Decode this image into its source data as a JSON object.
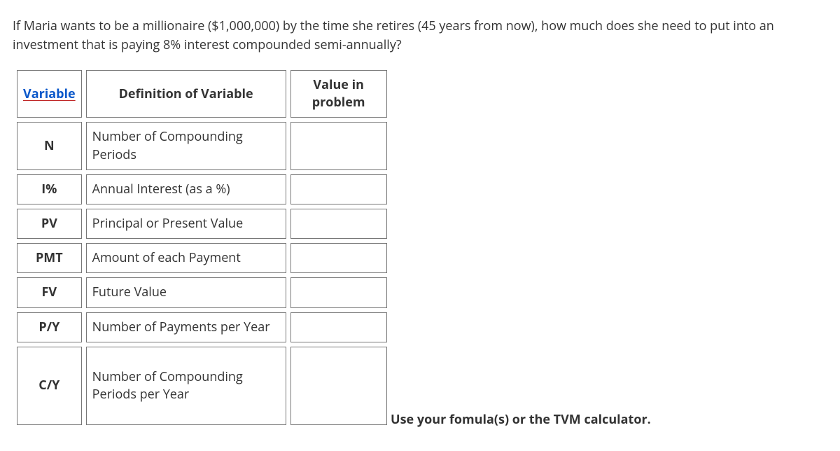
{
  "question": "If Maria wants to be a millionaire ($1,000,000) by the time she retires (45 years from now), how much does she need to put into an investment that is paying 8% interest compounded semi-annually?",
  "table": {
    "headers": {
      "variable": "Variable",
      "definition": "Definition of Variable",
      "value": "Value in problem"
    },
    "rows": [
      {
        "var": "N",
        "def": "Number of Compounding Periods",
        "val": ""
      },
      {
        "var": "I%",
        "def": "Annual Interest (as a %)",
        "val": ""
      },
      {
        "var": "PV",
        "def": "Principal or Present Value",
        "val": ""
      },
      {
        "var": "PMT",
        "def": "Amount of each Payment",
        "val": ""
      },
      {
        "var": "FV",
        "def": "Future Value",
        "val": ""
      },
      {
        "var": "P/Y",
        "def": "Number of Payments per Year",
        "val": ""
      },
      {
        "var": "C/Y",
        "def": "Number of Compounding Periods per Year",
        "val": ""
      }
    ]
  },
  "footer": "Use your fomula(s) or the TVM calculator.",
  "colors": {
    "text": "#333333",
    "link": "#0a58ca",
    "link_underline": "#c02727",
    "border": "#777777",
    "background": "#ffffff"
  },
  "typography": {
    "base_size_pt": 14,
    "font_family": "Open Sans, Segoe UI, Arial, sans-serif"
  }
}
